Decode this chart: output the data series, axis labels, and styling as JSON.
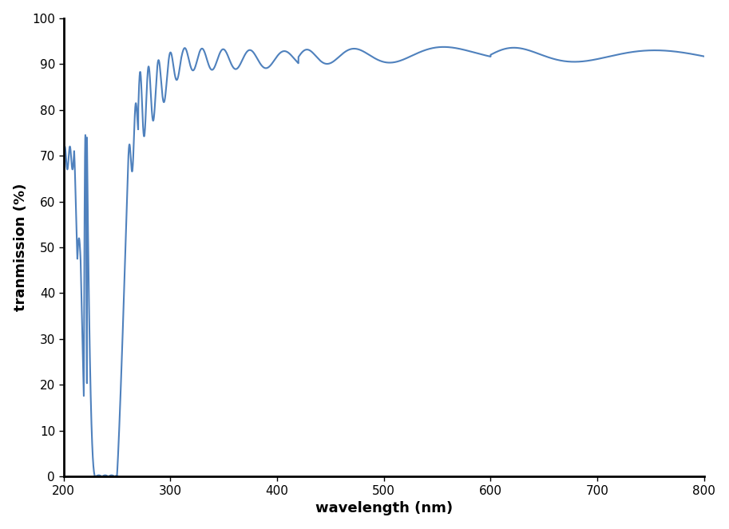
{
  "xlabel": "wavelength (nm)",
  "ylabel": "tranmission (%)",
  "xlim": [
    200,
    800
  ],
  "ylim": [
    0,
    100
  ],
  "xticks": [
    200,
    300,
    400,
    500,
    600,
    700,
    800
  ],
  "yticks": [
    0,
    10,
    20,
    30,
    40,
    50,
    60,
    70,
    80,
    90,
    100
  ],
  "line_color": "#4f81bd",
  "line_width": 1.5,
  "background_color": "#ffffff",
  "xlabel_fontsize": 13,
  "ylabel_fontsize": 13,
  "tick_fontsize": 11
}
